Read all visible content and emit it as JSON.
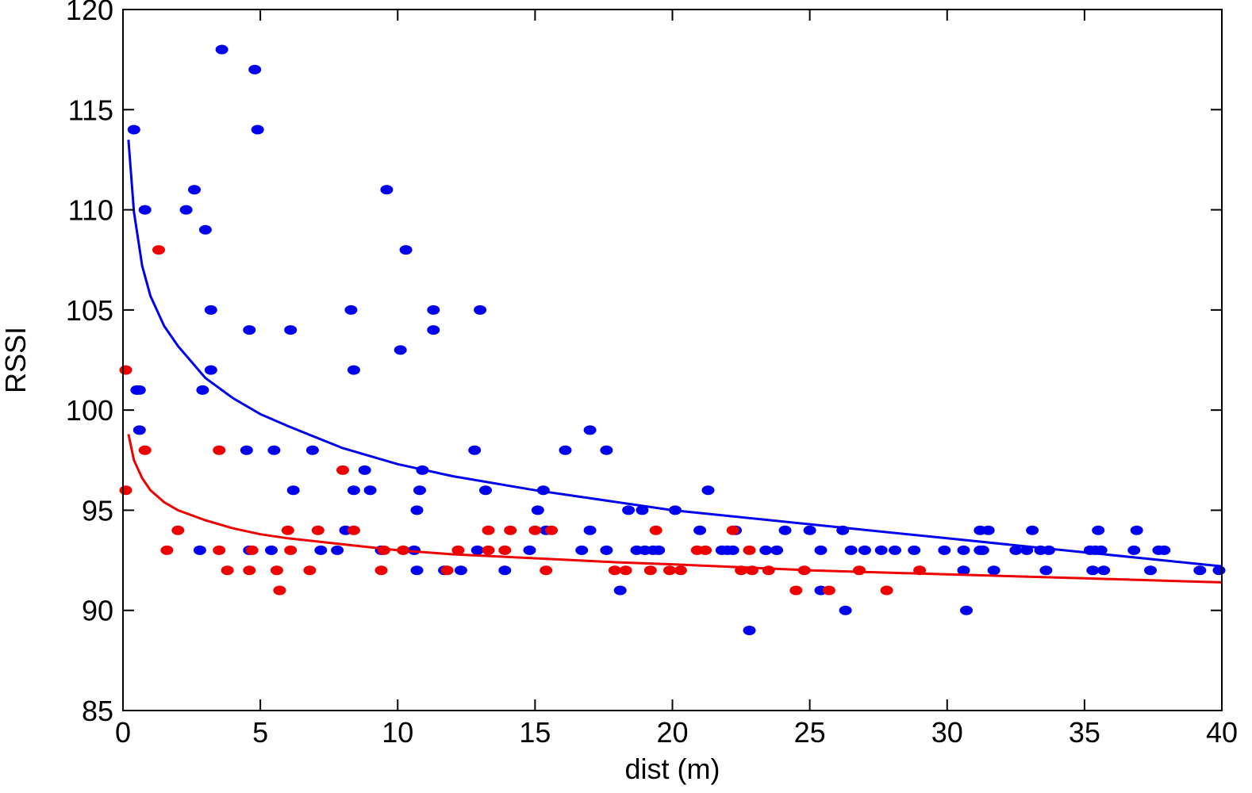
{
  "chart_data": {
    "type": "scatter",
    "title": "",
    "xlabel": "dist (m)",
    "ylabel": "RSSI",
    "xlim": [
      0,
      40
    ],
    "ylim": [
      85,
      120
    ],
    "xticks": [
      "0",
      "5",
      "10",
      "15",
      "20",
      "25",
      "30",
      "35",
      "40"
    ],
    "yticks": [
      "85",
      "90",
      "95",
      "100",
      "105",
      "110",
      "115",
      "120"
    ],
    "grid": false,
    "legend": "none",
    "series": [
      {
        "name": "blue-points",
        "kind": "scatter",
        "color": "#0000ee",
        "points": [
          [
            0.4,
            114
          ],
          [
            0.5,
            101
          ],
          [
            0.6,
            101
          ],
          [
            0.6,
            99
          ],
          [
            0.8,
            110
          ],
          [
            2.3,
            110
          ],
          [
            2.6,
            111
          ],
          [
            2.8,
            93
          ],
          [
            2.9,
            101
          ],
          [
            3.0,
            109
          ],
          [
            3.2,
            105
          ],
          [
            3.2,
            102
          ],
          [
            3.6,
            118
          ],
          [
            4.5,
            98
          ],
          [
            4.6,
            104
          ],
          [
            4.6,
            93
          ],
          [
            4.8,
            117
          ],
          [
            4.9,
            114
          ],
          [
            5.4,
            93
          ],
          [
            5.5,
            98
          ],
          [
            6.1,
            104
          ],
          [
            6.2,
            96
          ],
          [
            6.9,
            98
          ],
          [
            7.2,
            93
          ],
          [
            7.8,
            93
          ],
          [
            8.1,
            94
          ],
          [
            8.3,
            105
          ],
          [
            8.4,
            102
          ],
          [
            8.4,
            96
          ],
          [
            8.8,
            97
          ],
          [
            9.0,
            96
          ],
          [
            9.4,
            93
          ],
          [
            9.6,
            111
          ],
          [
            10.1,
            103
          ],
          [
            10.3,
            108
          ],
          [
            10.6,
            93
          ],
          [
            10.7,
            92
          ],
          [
            10.7,
            95
          ],
          [
            10.8,
            96
          ],
          [
            10.9,
            97
          ],
          [
            11.3,
            105
          ],
          [
            11.3,
            104
          ],
          [
            11.7,
            92
          ],
          [
            12.3,
            92
          ],
          [
            12.8,
            98
          ],
          [
            12.9,
            93
          ],
          [
            13.0,
            105
          ],
          [
            13.2,
            96
          ],
          [
            13.9,
            92
          ],
          [
            14.8,
            93
          ],
          [
            15.1,
            95
          ],
          [
            15.3,
            96
          ],
          [
            15.4,
            94
          ],
          [
            16.1,
            98
          ],
          [
            16.7,
            93
          ],
          [
            17.0,
            99
          ],
          [
            17.0,
            94
          ],
          [
            17.6,
            93
          ],
          [
            17.6,
            98
          ],
          [
            18.1,
            91
          ],
          [
            18.4,
            95
          ],
          [
            18.7,
            93
          ],
          [
            18.9,
            95
          ],
          [
            19.0,
            93
          ],
          [
            19.3,
            93
          ],
          [
            19.5,
            93
          ],
          [
            20.1,
            95
          ],
          [
            21.0,
            94
          ],
          [
            21.3,
            96
          ],
          [
            21.8,
            93
          ],
          [
            22.0,
            93
          ],
          [
            22.2,
            93
          ],
          [
            22.3,
            94
          ],
          [
            22.8,
            89
          ],
          [
            23.4,
            93
          ],
          [
            23.8,
            93
          ],
          [
            24.1,
            94
          ],
          [
            25.0,
            94
          ],
          [
            25.4,
            91
          ],
          [
            25.4,
            93
          ],
          [
            26.2,
            94
          ],
          [
            26.3,
            90
          ],
          [
            26.5,
            93
          ],
          [
            27.0,
            93
          ],
          [
            27.6,
            93
          ],
          [
            28.1,
            93
          ],
          [
            28.8,
            93
          ],
          [
            29.9,
            93
          ],
          [
            30.6,
            93
          ],
          [
            30.6,
            92
          ],
          [
            30.7,
            90
          ],
          [
            31.2,
            93
          ],
          [
            31.2,
            94
          ],
          [
            31.3,
            93
          ],
          [
            31.5,
            94
          ],
          [
            31.7,
            92
          ],
          [
            32.5,
            93
          ],
          [
            32.9,
            93
          ],
          [
            33.1,
            94
          ],
          [
            33.4,
            93
          ],
          [
            33.6,
            92
          ],
          [
            33.7,
            93
          ],
          [
            35.2,
            93
          ],
          [
            35.3,
            92
          ],
          [
            35.4,
            93
          ],
          [
            35.5,
            94
          ],
          [
            35.6,
            93
          ],
          [
            35.7,
            92
          ],
          [
            36.8,
            93
          ],
          [
            36.9,
            94
          ],
          [
            37.4,
            92
          ],
          [
            37.7,
            93
          ],
          [
            37.9,
            93
          ],
          [
            39.2,
            92
          ],
          [
            39.9,
            92
          ]
        ]
      },
      {
        "name": "red-points",
        "kind": "scatter",
        "color": "#ee0000",
        "points": [
          [
            0.1,
            96
          ],
          [
            0.1,
            102
          ],
          [
            0.8,
            98
          ],
          [
            1.3,
            108
          ],
          [
            1.6,
            93
          ],
          [
            2.0,
            94
          ],
          [
            3.5,
            98
          ],
          [
            3.5,
            93
          ],
          [
            3.8,
            92
          ],
          [
            4.6,
            92
          ],
          [
            4.7,
            93
          ],
          [
            5.6,
            92
          ],
          [
            5.7,
            91
          ],
          [
            6.0,
            94
          ],
          [
            6.1,
            93
          ],
          [
            6.8,
            92
          ],
          [
            7.1,
            94
          ],
          [
            8.0,
            97
          ],
          [
            8.4,
            94
          ],
          [
            9.4,
            92
          ],
          [
            9.5,
            93
          ],
          [
            10.2,
            93
          ],
          [
            11.8,
            92
          ],
          [
            12.2,
            93
          ],
          [
            13.3,
            94
          ],
          [
            13.3,
            93
          ],
          [
            13.9,
            93
          ],
          [
            14.1,
            94
          ],
          [
            15.0,
            94
          ],
          [
            15.4,
            92
          ],
          [
            15.6,
            94
          ],
          [
            17.9,
            92
          ],
          [
            18.3,
            92
          ],
          [
            19.2,
            92
          ],
          [
            19.4,
            94
          ],
          [
            19.9,
            92
          ],
          [
            20.3,
            92
          ],
          [
            20.9,
            93
          ],
          [
            21.2,
            93
          ],
          [
            22.2,
            94
          ],
          [
            22.5,
            92
          ],
          [
            22.8,
            93
          ],
          [
            22.9,
            92
          ],
          [
            23.5,
            92
          ],
          [
            24.5,
            91
          ],
          [
            24.8,
            92
          ],
          [
            25.7,
            91
          ],
          [
            26.8,
            92
          ],
          [
            27.8,
            91
          ],
          [
            29.0,
            92
          ]
        ]
      },
      {
        "name": "blue-fit",
        "kind": "line",
        "color": "#0000ee",
        "points": [
          [
            0.2,
            113.5
          ],
          [
            0.4,
            109.9
          ],
          [
            0.7,
            107.2
          ],
          [
            1.0,
            105.7
          ],
          [
            1.5,
            104.2
          ],
          [
            2,
            103.2
          ],
          [
            3,
            101.6
          ],
          [
            4,
            100.6
          ],
          [
            5,
            99.8
          ],
          [
            6,
            99.2
          ],
          [
            8,
            98.1
          ],
          [
            10,
            97.3
          ],
          [
            12,
            96.7
          ],
          [
            15,
            96.0
          ],
          [
            18,
            95.4
          ],
          [
            20,
            95.0
          ],
          [
            25,
            94.3
          ],
          [
            30,
            93.6
          ],
          [
            35,
            92.9
          ],
          [
            40,
            92.2
          ]
        ]
      },
      {
        "name": "red-fit",
        "kind": "line",
        "color": "#ee0000",
        "points": [
          [
            0.2,
            98.8
          ],
          [
            0.4,
            97.5
          ],
          [
            0.7,
            96.6
          ],
          [
            1.0,
            96.0
          ],
          [
            1.5,
            95.4
          ],
          [
            2,
            95.0
          ],
          [
            3,
            94.5
          ],
          [
            4,
            94.1
          ],
          [
            5,
            93.8
          ],
          [
            6,
            93.6
          ],
          [
            8,
            93.3
          ],
          [
            10,
            93.0
          ],
          [
            12,
            92.8
          ],
          [
            15,
            92.6
          ],
          [
            18,
            92.4
          ],
          [
            20,
            92.3
          ],
          [
            25,
            92.0
          ],
          [
            30,
            91.8
          ],
          [
            35,
            91.6
          ],
          [
            40,
            91.4
          ]
        ]
      }
    ]
  }
}
